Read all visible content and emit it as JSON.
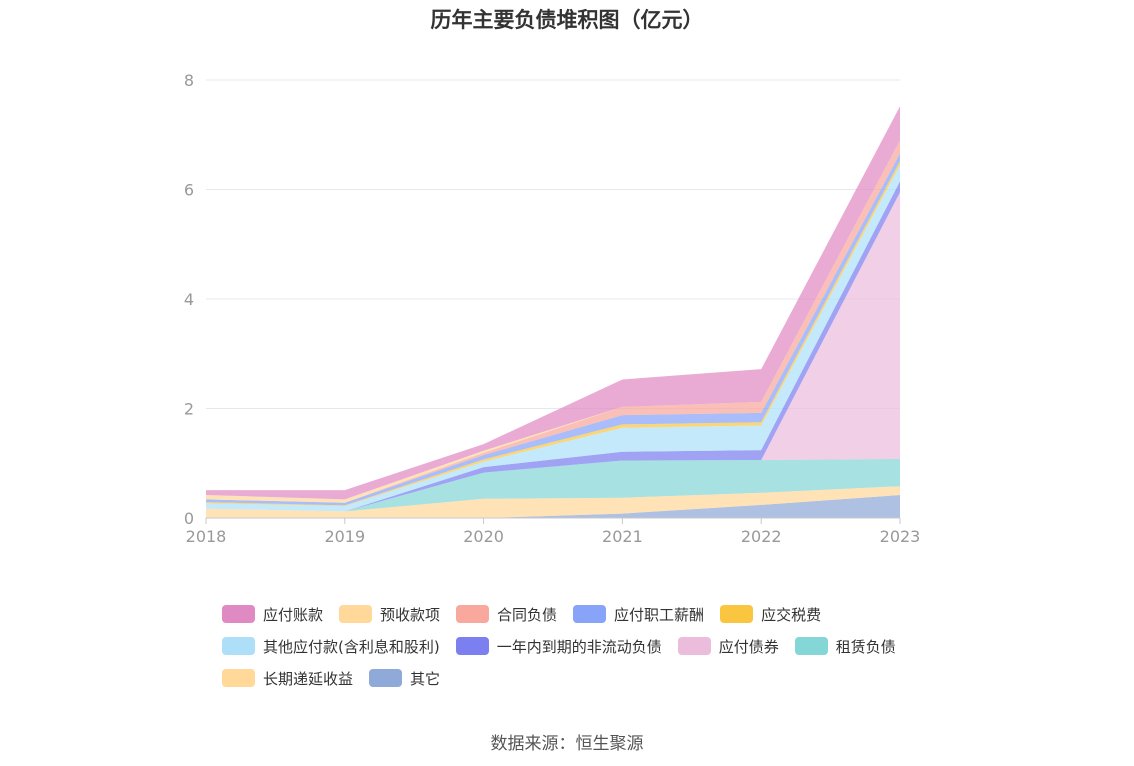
{
  "title": "历年主要负债堆积图（亿元）",
  "source": "数据来源：恒生聚源",
  "chart_data": {
    "type": "area",
    "stacked": true,
    "title": "历年主要负债堆积图（亿元）",
    "categories": [
      "2018",
      "2019",
      "2020",
      "2021",
      "2022",
      "2023"
    ],
    "ylim": [
      0,
      8
    ],
    "yticks": [
      "0",
      "2",
      "4",
      "6",
      "8"
    ],
    "grid": true,
    "legend_position": "bottom",
    "series": [
      {
        "name": "其它",
        "color": "#8fa9d8",
        "values": [
          0.0,
          0.0,
          0.0,
          0.08,
          0.24,
          0.42
        ]
      },
      {
        "name": "长期递延收益",
        "color": "#ffd89a",
        "values": [
          0.17,
          0.12,
          0.35,
          0.29,
          0.22,
          0.16
        ]
      },
      {
        "name": "租赁负债",
        "color": "#85d6d6",
        "values": [
          0.0,
          0.0,
          0.48,
          0.68,
          0.6,
          0.5
        ]
      },
      {
        "name": "应付债券",
        "color": "#ebbcdc",
        "values": [
          0.0,
          0.0,
          0.0,
          0.0,
          0.0,
          4.87
        ]
      },
      {
        "name": "一年内到期的非流动负债",
        "color": "#7b7ff0",
        "values": [
          0.0,
          0.0,
          0.1,
          0.16,
          0.18,
          0.2
        ]
      },
      {
        "name": "其他应付款(含利息和股利)",
        "color": "#ade0f8",
        "values": [
          0.1,
          0.1,
          0.1,
          0.44,
          0.45,
          0.3
        ]
      },
      {
        "name": "应交税费",
        "color": "#fbc63f",
        "values": [
          0.02,
          0.01,
          0.04,
          0.06,
          0.06,
          0.07
        ]
      },
      {
        "name": "应付职工薪酬",
        "color": "#88a4f8",
        "values": [
          0.05,
          0.05,
          0.08,
          0.17,
          0.17,
          0.14
        ]
      },
      {
        "name": "合同负债",
        "color": "#f8a89d",
        "values": [
          0.0,
          0.0,
          0.04,
          0.15,
          0.2,
          0.24
        ]
      },
      {
        "name": "预收款项",
        "color": "#ffd89a",
        "values": [
          0.08,
          0.06,
          0.04,
          0.0,
          0.0,
          0.0
        ]
      },
      {
        "name": "应付账款",
        "color": "#e08ac3",
        "values": [
          0.09,
          0.17,
          0.12,
          0.5,
          0.6,
          0.62
        ]
      }
    ],
    "legend_rows": [
      [
        "应付账款",
        "预收款项",
        "合同负债",
        "应付职工薪酬",
        "应交税费"
      ],
      [
        "其他应付款(含利息和股利)",
        "一年内到期的非流动负债",
        "应付债券",
        "租赁负债"
      ],
      [
        "长期递延收益",
        "其它"
      ]
    ]
  }
}
